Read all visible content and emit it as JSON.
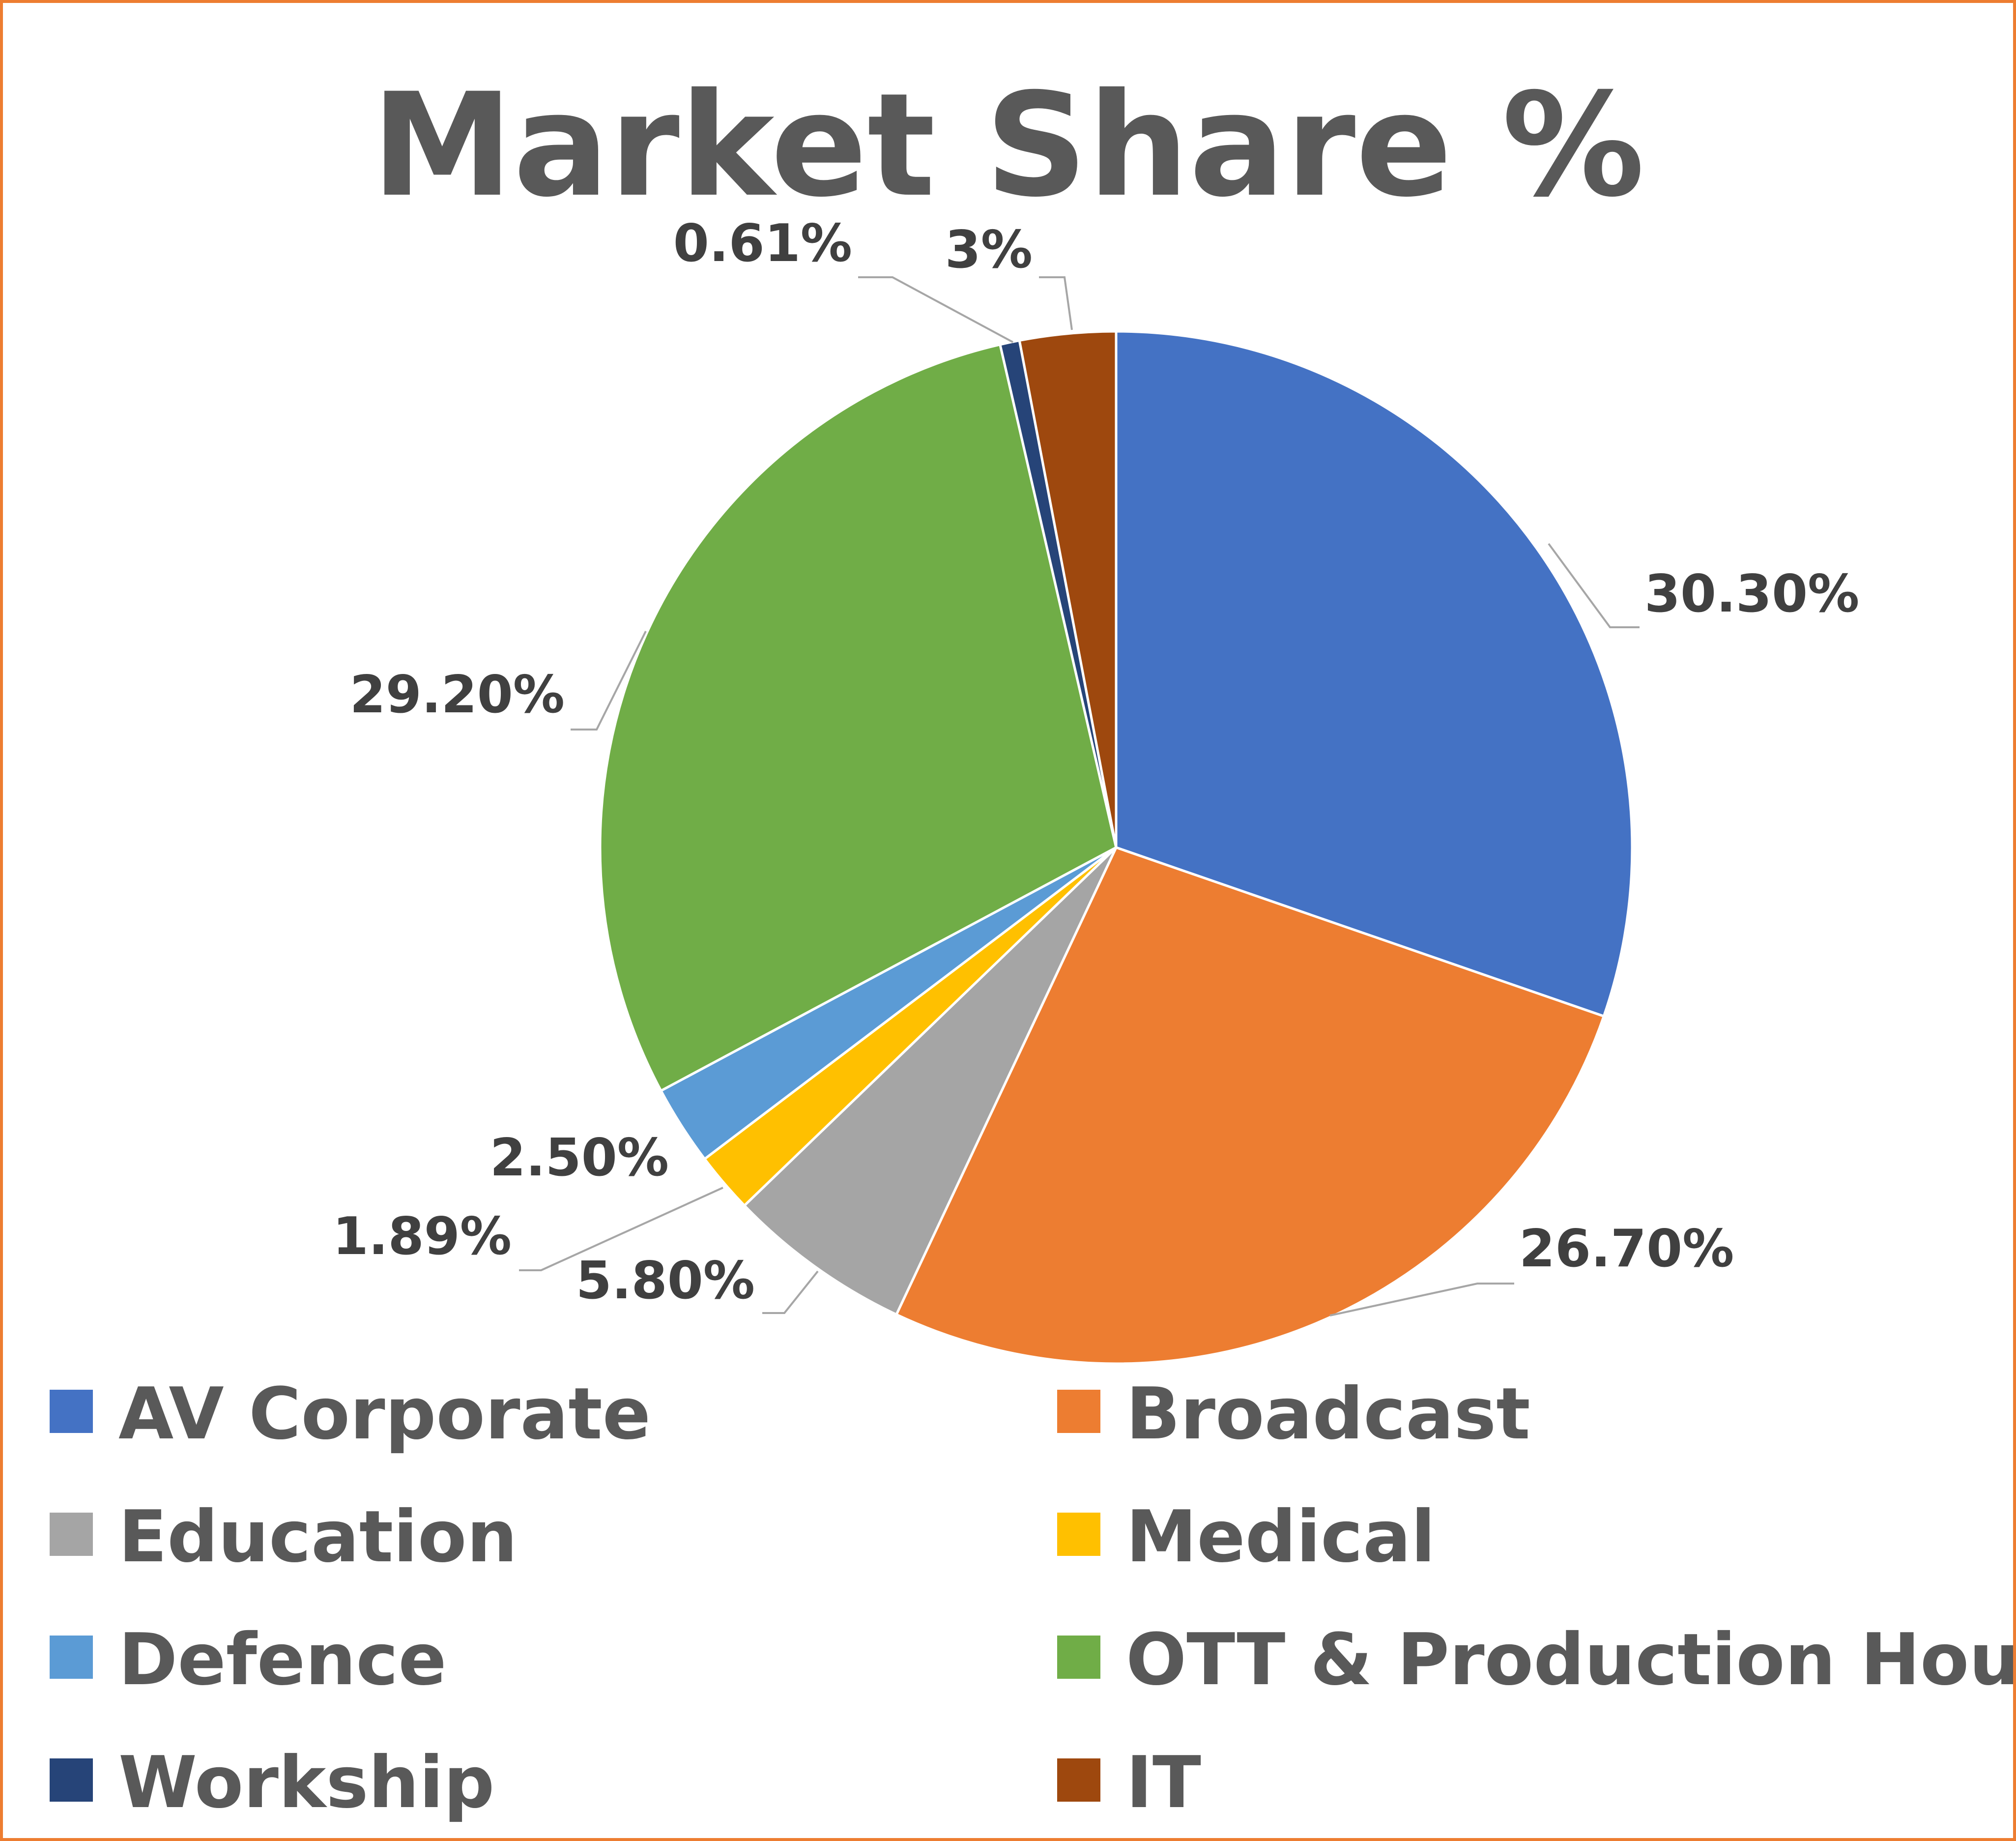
{
  "chart_data": {
    "type": "pie",
    "title": "Market Share %",
    "start_angle_deg": 0,
    "direction": "clockwise",
    "slices": [
      {
        "name": "AV Corporate",
        "value": 30.3,
        "label": "30.30%",
        "color": "#4472C4"
      },
      {
        "name": "Broadcast",
        "value": 26.7,
        "label": "26.70%",
        "color": "#ED7D31"
      },
      {
        "name": "Education",
        "value": 5.8,
        "label": "5.80%",
        "color": "#A5A5A5"
      },
      {
        "name": "Medical",
        "value": 1.89,
        "label": "1.89%",
        "color": "#FFC000"
      },
      {
        "name": "Defence",
        "value": 2.5,
        "label": "2.50%",
        "color": "#5B9BD5"
      },
      {
        "name": "OTT & Production Houses",
        "value": 29.2,
        "label": "29.20%",
        "color": "#70AD47"
      },
      {
        "name": "Workship",
        "value": 0.61,
        "label": "0.61%",
        "color": "#264478"
      },
      {
        "name": "IT",
        "value": 3,
        "label": "3%",
        "color": "#9E480E"
      }
    ],
    "legend": {
      "placement": "bottom",
      "columns": 2
    },
    "border_color": "#ED7D31"
  }
}
